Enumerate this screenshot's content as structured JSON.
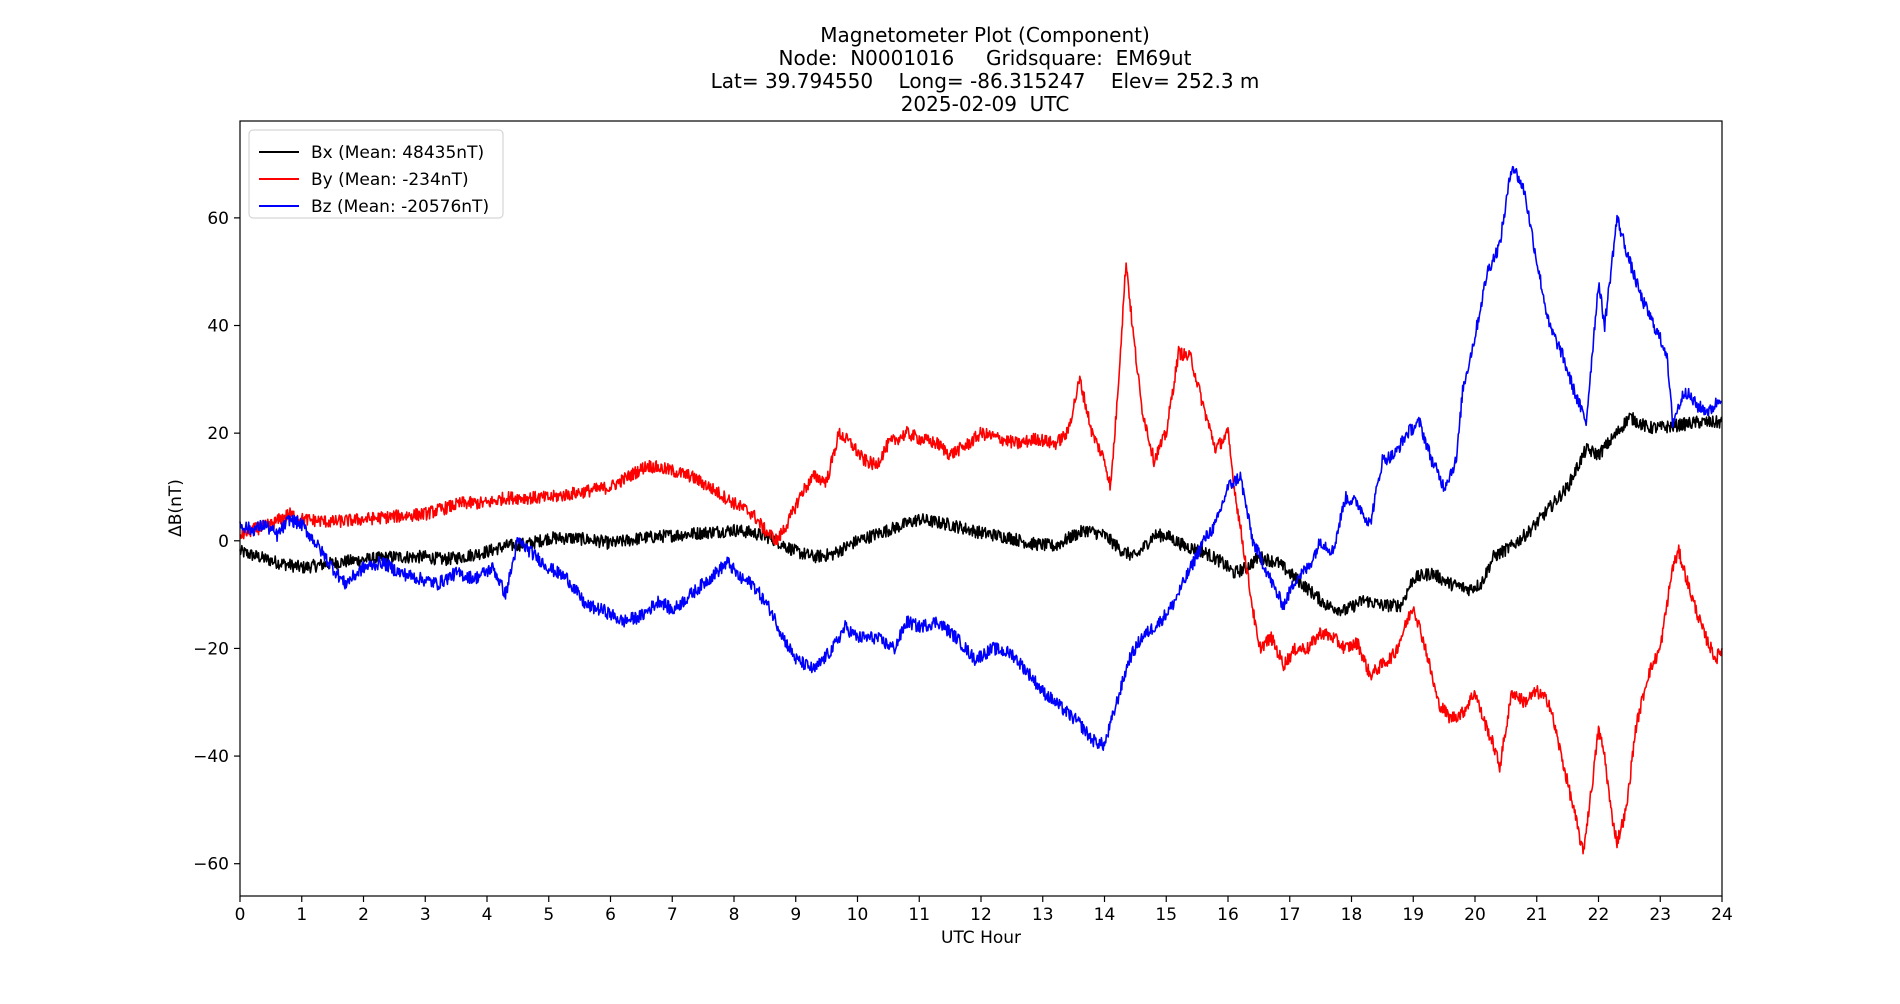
{
  "chart_data": {
    "type": "line",
    "title_lines": [
      "Magnetometer Plot (Component)",
      "Node:  N0001016     Gridsquare:  EM69ut",
      "Lat= 39.794550    Long= -86.315247    Elev= 252.3 m",
      "2025-02-09  UTC"
    ],
    "xlabel": "UTC Hour",
    "ylabel": "ΔB(nT)",
    "xlim": [
      0,
      24
    ],
    "ylim": [
      -66,
      78
    ],
    "xticks": [
      0,
      1,
      2,
      3,
      4,
      5,
      6,
      7,
      8,
      9,
      10,
      11,
      12,
      13,
      14,
      15,
      16,
      17,
      18,
      19,
      20,
      21,
      22,
      23,
      24
    ],
    "yticks": [
      -60,
      -40,
      -20,
      0,
      20,
      40,
      60
    ],
    "ytick_labels": [
      "−60",
      "−40",
      "−20",
      "0",
      "20",
      "40",
      "60"
    ],
    "grid": false,
    "legend_position": "top-left",
    "series": [
      {
        "name": "Bx (Mean: 48435nT)",
        "color": "#000000",
        "points": [
          [
            0,
            -2
          ],
          [
            0.3,
            -3
          ],
          [
            0.6,
            -4
          ],
          [
            1,
            -5
          ],
          [
            1.3,
            -4.5
          ],
          [
            1.6,
            -4
          ],
          [
            2,
            -3.5
          ],
          [
            2.5,
            -3
          ],
          [
            3,
            -3
          ],
          [
            3.3,
            -3.5
          ],
          [
            3.6,
            -3
          ],
          [
            4,
            -2
          ],
          [
            4.3,
            -1
          ],
          [
            4.7,
            -0.5
          ],
          [
            5,
            0.5
          ],
          [
            5.4,
            0.5
          ],
          [
            5.8,
            0
          ],
          [
            6,
            -0.5
          ],
          [
            6.5,
            0.5
          ],
          [
            7,
            1
          ],
          [
            7.5,
            1.5
          ],
          [
            8,
            2
          ],
          [
            8.3,
            1.5
          ],
          [
            8.6,
            0.5
          ],
          [
            9,
            -2
          ],
          [
            9.3,
            -3
          ],
          [
            9.6,
            -2.5
          ],
          [
            10,
            0
          ],
          [
            10.5,
            2
          ],
          [
            11,
            4
          ],
          [
            11.5,
            3
          ],
          [
            12,
            1.5
          ],
          [
            12.5,
            0.5
          ],
          [
            12.8,
            -0.5
          ],
          [
            13.2,
            -1
          ],
          [
            13.5,
            1
          ],
          [
            13.7,
            2
          ],
          [
            14,
            1
          ],
          [
            14.3,
            -2
          ],
          [
            14.5,
            -3
          ],
          [
            14.8,
            1
          ],
          [
            15,
            1
          ],
          [
            15.3,
            -1
          ],
          [
            15.6,
            -2
          ],
          [
            15.9,
            -4
          ],
          [
            16.1,
            -6
          ],
          [
            16.3,
            -5
          ],
          [
            16.5,
            -3
          ],
          [
            16.8,
            -4
          ],
          [
            17,
            -6
          ],
          [
            17.3,
            -9
          ],
          [
            17.6,
            -12
          ],
          [
            17.9,
            -13
          ],
          [
            18.2,
            -11
          ],
          [
            18.5,
            -12
          ],
          [
            18.8,
            -12
          ],
          [
            19,
            -7
          ],
          [
            19.3,
            -6
          ],
          [
            19.6,
            -8
          ],
          [
            19.9,
            -9
          ],
          [
            20.1,
            -8
          ],
          [
            20.3,
            -3
          ],
          [
            20.6,
            -1
          ],
          [
            20.9,
            2
          ],
          [
            21.2,
            6
          ],
          [
            21.5,
            10
          ],
          [
            21.8,
            17
          ],
          [
            22,
            16
          ],
          [
            22.3,
            20
          ],
          [
            22.5,
            23
          ],
          [
            22.8,
            21
          ],
          [
            23,
            21
          ],
          [
            23.3,
            21.5
          ],
          [
            23.6,
            22
          ],
          [
            24,
            22
          ]
        ]
      },
      {
        "name": "By (Mean: -234nT)",
        "color": "#ff0000",
        "points": [
          [
            0,
            1
          ],
          [
            0.2,
            2
          ],
          [
            0.5,
            3
          ],
          [
            0.8,
            5
          ],
          [
            1,
            4
          ],
          [
            1.5,
            3.5
          ],
          [
            2,
            4
          ],
          [
            2.5,
            4.5
          ],
          [
            3,
            5
          ],
          [
            3.3,
            6
          ],
          [
            3.6,
            7
          ],
          [
            4,
            7
          ],
          [
            4.3,
            8
          ],
          [
            4.7,
            8
          ],
          [
            5,
            8
          ],
          [
            5.5,
            9
          ],
          [
            6,
            10
          ],
          [
            6.3,
            12
          ],
          [
            6.6,
            14
          ],
          [
            7,
            13
          ],
          [
            7.3,
            12
          ],
          [
            7.6,
            10
          ],
          [
            8,
            7
          ],
          [
            8.3,
            5
          ],
          [
            8.5,
            2
          ],
          [
            8.7,
            0
          ],
          [
            8.9,
            4
          ],
          [
            9.1,
            9
          ],
          [
            9.3,
            12
          ],
          [
            9.5,
            11
          ],
          [
            9.7,
            20
          ],
          [
            9.9,
            18
          ],
          [
            10.1,
            15
          ],
          [
            10.3,
            14
          ],
          [
            10.5,
            18
          ],
          [
            10.8,
            20
          ],
          [
            11,
            19
          ],
          [
            11.3,
            18
          ],
          [
            11.5,
            16
          ],
          [
            11.8,
            18
          ],
          [
            12,
            20
          ],
          [
            12.3,
            19
          ],
          [
            12.6,
            18
          ],
          [
            12.9,
            19
          ],
          [
            13.2,
            18
          ],
          [
            13.4,
            20
          ],
          [
            13.6,
            30
          ],
          [
            13.8,
            20
          ],
          [
            14,
            15
          ],
          [
            14.1,
            10
          ],
          [
            14.2,
            25
          ],
          [
            14.35,
            52
          ],
          [
            14.45,
            40
          ],
          [
            14.6,
            25
          ],
          [
            14.7,
            20
          ],
          [
            14.8,
            15
          ],
          [
            15,
            20
          ],
          [
            15.2,
            35
          ],
          [
            15.4,
            34
          ],
          [
            15.6,
            25
          ],
          [
            15.8,
            17
          ],
          [
            16,
            20
          ],
          [
            16.1,
            10
          ],
          [
            16.3,
            -5
          ],
          [
            16.5,
            -20
          ],
          [
            16.7,
            -18
          ],
          [
            16.9,
            -23
          ],
          [
            17.1,
            -20
          ],
          [
            17.3,
            -20
          ],
          [
            17.5,
            -17
          ],
          [
            17.7,
            -18
          ],
          [
            17.9,
            -20
          ],
          [
            18.1,
            -19
          ],
          [
            18.3,
            -25
          ],
          [
            18.5,
            -23
          ],
          [
            18.7,
            -21
          ],
          [
            18.9,
            -15
          ],
          [
            19,
            -12
          ],
          [
            19.2,
            -20
          ],
          [
            19.4,
            -30
          ],
          [
            19.6,
            -33
          ],
          [
            19.8,
            -32
          ],
          [
            20,
            -28
          ],
          [
            20.1,
            -32
          ],
          [
            20.3,
            -38
          ],
          [
            20.4,
            -42
          ],
          [
            20.6,
            -28
          ],
          [
            20.8,
            -30
          ],
          [
            21,
            -28
          ],
          [
            21.2,
            -30
          ],
          [
            21.4,
            -40
          ],
          [
            21.6,
            -50
          ],
          [
            21.75,
            -58
          ],
          [
            21.9,
            -45
          ],
          [
            22,
            -35
          ],
          [
            22.1,
            -40
          ],
          [
            22.2,
            -50
          ],
          [
            22.3,
            -56
          ],
          [
            22.45,
            -50
          ],
          [
            22.6,
            -35
          ],
          [
            22.8,
            -25
          ],
          [
            23,
            -20
          ],
          [
            23.2,
            -5
          ],
          [
            23.3,
            -2
          ],
          [
            23.5,
            -10
          ],
          [
            23.7,
            -17
          ],
          [
            23.9,
            -22
          ],
          [
            24,
            -20
          ]
        ]
      },
      {
        "name": "Bz (Mean: -20576nT)",
        "color": "#0000ff",
        "points": [
          [
            0,
            3
          ],
          [
            0.2,
            2
          ],
          [
            0.4,
            3
          ],
          [
            0.6,
            1
          ],
          [
            0.8,
            4
          ],
          [
            1,
            3
          ],
          [
            1.2,
            0
          ],
          [
            1.5,
            -5
          ],
          [
            1.7,
            -8
          ],
          [
            2,
            -5
          ],
          [
            2.3,
            -4
          ],
          [
            2.6,
            -6
          ],
          [
            2.9,
            -7
          ],
          [
            3.2,
            -8
          ],
          [
            3.5,
            -6
          ],
          [
            3.8,
            -7
          ],
          [
            4.1,
            -5
          ],
          [
            4.3,
            -10
          ],
          [
            4.5,
            0
          ],
          [
            4.7,
            -2
          ],
          [
            5,
            -5
          ],
          [
            5.3,
            -7
          ],
          [
            5.6,
            -12
          ],
          [
            5.9,
            -13
          ],
          [
            6.2,
            -15
          ],
          [
            6.5,
            -14
          ],
          [
            6.8,
            -11
          ],
          [
            7,
            -13
          ],
          [
            7.3,
            -10
          ],
          [
            7.6,
            -7
          ],
          [
            7.9,
            -4
          ],
          [
            8.1,
            -7
          ],
          [
            8.3,
            -8
          ],
          [
            8.6,
            -13
          ],
          [
            8.8,
            -18
          ],
          [
            9,
            -22
          ],
          [
            9.3,
            -24
          ],
          [
            9.6,
            -20
          ],
          [
            9.8,
            -16
          ],
          [
            10,
            -18
          ],
          [
            10.3,
            -18
          ],
          [
            10.6,
            -20
          ],
          [
            10.8,
            -15
          ],
          [
            11,
            -16
          ],
          [
            11.3,
            -15
          ],
          [
            11.6,
            -18
          ],
          [
            11.9,
            -22
          ],
          [
            12.2,
            -20
          ],
          [
            12.5,
            -21
          ],
          [
            12.8,
            -25
          ],
          [
            13,
            -28
          ],
          [
            13.3,
            -31
          ],
          [
            13.6,
            -34
          ],
          [
            13.8,
            -37
          ],
          [
            14,
            -38
          ],
          [
            14.2,
            -30
          ],
          [
            14.4,
            -22
          ],
          [
            14.6,
            -18
          ],
          [
            14.9,
            -15
          ],
          [
            15.1,
            -12
          ],
          [
            15.4,
            -5
          ],
          [
            15.6,
            0
          ],
          [
            15.8,
            3
          ],
          [
            16,
            10
          ],
          [
            16.2,
            12
          ],
          [
            16.4,
            0
          ],
          [
            16.6,
            -5
          ],
          [
            16.8,
            -10
          ],
          [
            16.9,
            -12
          ],
          [
            17.1,
            -7
          ],
          [
            17.3,
            -5
          ],
          [
            17.5,
            0
          ],
          [
            17.7,
            -2
          ],
          [
            17.9,
            8
          ],
          [
            18.1,
            7
          ],
          [
            18.3,
            3
          ],
          [
            18.5,
            15
          ],
          [
            18.7,
            16
          ],
          [
            18.9,
            20
          ],
          [
            19.1,
            22
          ],
          [
            19.3,
            15
          ],
          [
            19.5,
            10
          ],
          [
            19.7,
            15
          ],
          [
            19.8,
            28
          ],
          [
            20,
            38
          ],
          [
            20.2,
            50
          ],
          [
            20.4,
            55
          ],
          [
            20.6,
            70
          ],
          [
            20.8,
            65
          ],
          [
            21,
            52
          ],
          [
            21.2,
            40
          ],
          [
            21.4,
            35
          ],
          [
            21.6,
            28
          ],
          [
            21.8,
            22
          ],
          [
            22,
            48
          ],
          [
            22.1,
            40
          ],
          [
            22.3,
            60
          ],
          [
            22.5,
            52
          ],
          [
            22.7,
            45
          ],
          [
            22.9,
            40
          ],
          [
            23.1,
            35
          ],
          [
            23.2,
            22
          ],
          [
            23.4,
            28
          ],
          [
            23.6,
            25
          ],
          [
            23.8,
            24
          ],
          [
            24,
            27
          ]
        ]
      }
    ]
  }
}
